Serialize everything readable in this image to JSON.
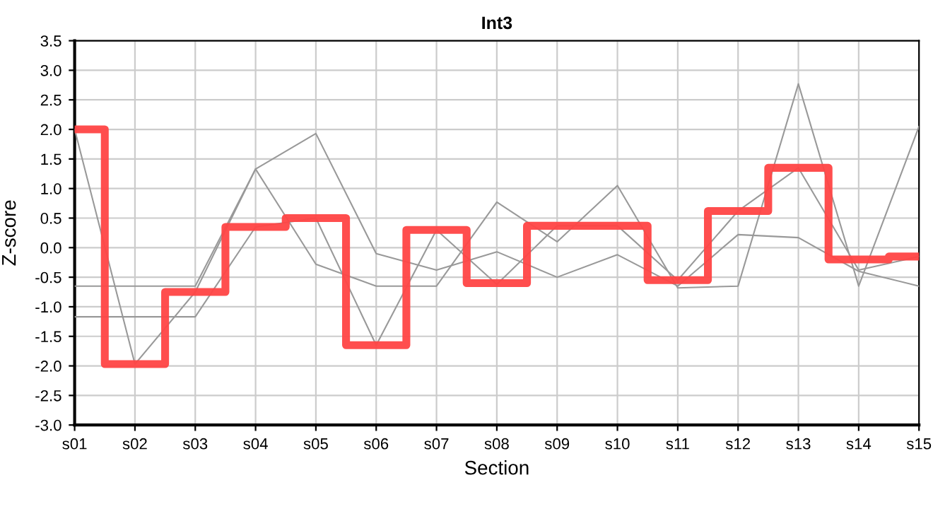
{
  "chart_data": {
    "type": "line",
    "title": "Int3",
    "xlabel": "Section",
    "ylabel": "Z-score",
    "categories": [
      "s01",
      "s02",
      "s03",
      "s04",
      "s05",
      "s06",
      "s07",
      "s08",
      "s09",
      "s10",
      "s11",
      "s12",
      "s13",
      "s14",
      "s15"
    ],
    "series": [
      {
        "color": "#999999",
        "values": [
          2.0,
          -1.97,
          -0.75,
          1.33,
          1.93,
          -0.1,
          -0.38,
          -0.07,
          -0.5,
          -0.12,
          -0.65,
          0.22,
          0.17,
          -0.4,
          -0.65
        ]
      },
      {
        "color": "#999999",
        "values": [
          -0.65,
          -0.65,
          -0.65,
          1.33,
          -0.28,
          -0.65,
          -0.65,
          0.77,
          0.1,
          1.05,
          -0.68,
          -0.65,
          2.77,
          -0.65,
          2.05
        ]
      },
      {
        "color": "#999999",
        "values": [
          -1.17,
          -1.17,
          -1.17,
          0.35,
          0.5,
          -1.65,
          0.3,
          -0.62,
          0.37,
          0.37,
          -0.55,
          0.62,
          1.35,
          -0.38,
          -0.15
        ]
      },
      {
        "type": "step",
        "color": "#ff4444",
        "values": [
          2.0,
          -1.97,
          -0.75,
          0.35,
          0.5,
          -1.65,
          0.3,
          -0.6,
          0.37,
          0.37,
          -0.55,
          0.62,
          1.35,
          -0.2,
          -0.15
        ]
      }
    ],
    "ylim": [
      -3.0,
      3.5
    ],
    "yticks": [
      {
        "value": -3.0,
        "label": "-3.0"
      },
      {
        "value": -2.5,
        "label": "-2.5"
      },
      {
        "value": -2.0,
        "label": "-2.0"
      },
      {
        "value": -1.5,
        "label": "-1.5"
      },
      {
        "value": -1.0,
        "label": "-1.0"
      },
      {
        "value": -0.5,
        "label": "-0.5"
      },
      {
        "value": 0,
        "label": "0.0"
      },
      {
        "value": 0.5,
        "label": "0.5"
      },
      {
        "value": 1.0,
        "label": "1.0"
      },
      {
        "value": 1.5,
        "label": "1.5"
      },
      {
        "value": 2.0,
        "label": "2.0"
      },
      {
        "value": 2.5,
        "label": "2.5"
      },
      {
        "value": 3.0,
        "label": "3.0"
      },
      {
        "value": 3.5,
        "label": "3.5"
      }
    ],
    "grid": true
  }
}
